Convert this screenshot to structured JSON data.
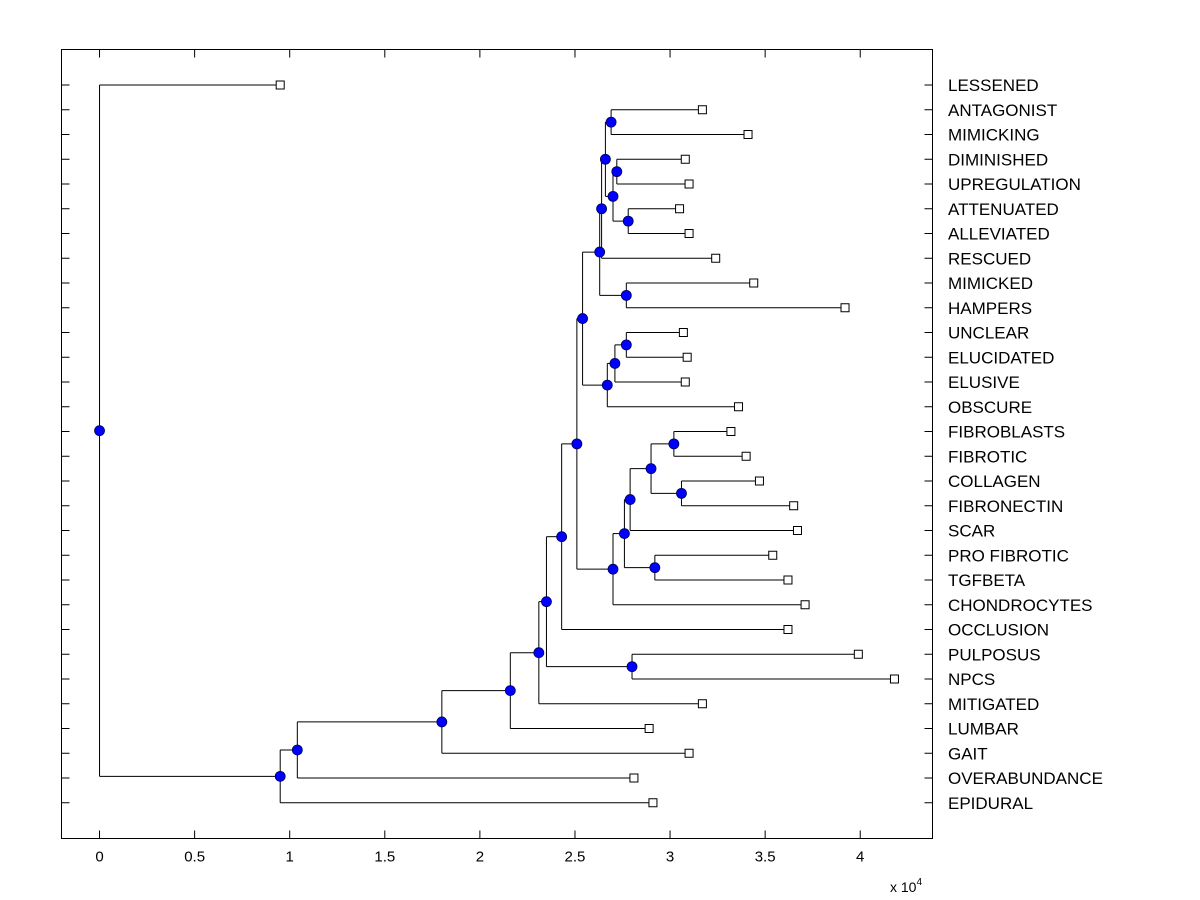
{
  "chart_data": {
    "type": "dendrogram",
    "orientation": "horizontal",
    "xlabel": "",
    "ylabel": "",
    "x_scale_label": "x 10",
    "x_scale_exponent": "4",
    "xlim": [
      -0.2,
      4.38
    ],
    "xticks": [
      0,
      0.5,
      1,
      1.5,
      2,
      2.5,
      3,
      3.5,
      4
    ],
    "xtick_labels": [
      "0",
      "0.5",
      "1",
      "1.5",
      "2",
      "2.5",
      "3",
      "3.5",
      "4"
    ],
    "leaves": [
      {
        "label": "LESSENED",
        "x": 0.95
      },
      {
        "label": "ANTAGONIST",
        "x": 3.17
      },
      {
        "label": "MIMICKING",
        "x": 3.41
      },
      {
        "label": "DIMINISHED",
        "x": 3.08
      },
      {
        "label": "UPREGULATION",
        "x": 3.1
      },
      {
        "label": "ATTENUATED",
        "x": 3.05
      },
      {
        "label": "ALLEVIATED",
        "x": 3.1
      },
      {
        "label": "RESCUED",
        "x": 3.24
      },
      {
        "label": "MIMICKED",
        "x": 3.44
      },
      {
        "label": "HAMPERS",
        "x": 3.92
      },
      {
        "label": "UNCLEAR",
        "x": 3.07
      },
      {
        "label": "ELUCIDATED",
        "x": 3.09
      },
      {
        "label": "ELUSIVE",
        "x": 3.08
      },
      {
        "label": "OBSCURE",
        "x": 3.36
      },
      {
        "label": "FIBROBLASTS",
        "x": 3.32
      },
      {
        "label": "FIBROTIC",
        "x": 3.4
      },
      {
        "label": "COLLAGEN",
        "x": 3.47
      },
      {
        "label": "FIBRONECTIN",
        "x": 3.65
      },
      {
        "label": "SCAR",
        "x": 3.67
      },
      {
        "label": "PRO FIBROTIC",
        "x": 3.54
      },
      {
        "label": "TGFBETA",
        "x": 3.62
      },
      {
        "label": "CHONDROCYTES",
        "x": 3.71
      },
      {
        "label": "OCCLUSION",
        "x": 3.62
      },
      {
        "label": "PULPOSUS",
        "x": 3.99
      },
      {
        "label": "NPCS",
        "x": 4.18
      },
      {
        "label": "MITIGATED",
        "x": 3.17
      },
      {
        "label": "LUMBAR",
        "x": 2.89
      },
      {
        "label": "GAIT",
        "x": 3.1
      },
      {
        "label": "OVERABUNDANCE",
        "x": 2.81
      },
      {
        "label": "EPIDURAL",
        "x": 2.91
      }
    ],
    "merges": [
      {
        "id": "n1",
        "x": 2.69,
        "children": [
          "L:ANTAGONIST",
          "L:MIMICKING"
        ]
      },
      {
        "id": "n2",
        "x": 2.72,
        "children": [
          "L:DIMINISHED",
          "L:UPREGULATION"
        ]
      },
      {
        "id": "n3",
        "x": 2.78,
        "children": [
          "L:ATTENUATED",
          "L:ALLEVIATED"
        ]
      },
      {
        "id": "n4",
        "x": 2.7,
        "children": [
          "n2",
          "n3"
        ]
      },
      {
        "id": "n5",
        "x": 2.66,
        "children": [
          "n1",
          "n4"
        ]
      },
      {
        "id": "n6",
        "x": 2.64,
        "children": [
          "n5",
          "L:RESCUED"
        ]
      },
      {
        "id": "n7",
        "x": 2.77,
        "children": [
          "L:MIMICKED",
          "L:HAMPERS"
        ]
      },
      {
        "id": "n8",
        "x": 2.63,
        "children": [
          "n6",
          "n7"
        ]
      },
      {
        "id": "n9",
        "x": 2.77,
        "children": [
          "L:UNCLEAR",
          "L:ELUCIDATED"
        ]
      },
      {
        "id": "n10",
        "x": 2.71,
        "children": [
          "n9",
          "L:ELUSIVE"
        ]
      },
      {
        "id": "n11",
        "x": 2.67,
        "children": [
          "n10",
          "L:OBSCURE"
        ]
      },
      {
        "id": "n12",
        "x": 2.54,
        "children": [
          "n8",
          "n11"
        ]
      },
      {
        "id": "n13",
        "x": 3.02,
        "children": [
          "L:FIBROBLASTS",
          "L:FIBROTIC"
        ]
      },
      {
        "id": "n14",
        "x": 3.06,
        "children": [
          "L:COLLAGEN",
          "L:FIBRONECTIN"
        ]
      },
      {
        "id": "n15",
        "x": 2.9,
        "children": [
          "n13",
          "n14"
        ]
      },
      {
        "id": "n16",
        "x": 2.79,
        "children": [
          "n15",
          "L:SCAR"
        ]
      },
      {
        "id": "n17",
        "x": 2.92,
        "children": [
          "L:PRO FIBROTIC",
          "L:TGFBETA"
        ]
      },
      {
        "id": "n18",
        "x": 2.76,
        "children": [
          "n16",
          "n17"
        ]
      },
      {
        "id": "n19",
        "x": 2.7,
        "children": [
          "n18",
          "L:CHONDROCYTES"
        ]
      },
      {
        "id": "n20",
        "x": 2.51,
        "children": [
          "n12",
          "n19"
        ]
      },
      {
        "id": "n21",
        "x": 2.43,
        "children": [
          "n20",
          "L:OCCLUSION"
        ]
      },
      {
        "id": "n22",
        "x": 2.8,
        "children": [
          "L:PULPOSUS",
          "L:NPCS"
        ]
      },
      {
        "id": "n23",
        "x": 2.35,
        "children": [
          "n21",
          "n22"
        ]
      },
      {
        "id": "n24",
        "x": 2.31,
        "children": [
          "n23",
          "L:MITIGATED"
        ]
      },
      {
        "id": "n25",
        "x": 2.16,
        "children": [
          "n24",
          "L:LUMBAR"
        ]
      },
      {
        "id": "n26",
        "x": 1.8,
        "children": [
          "n25",
          "L:GAIT"
        ]
      },
      {
        "id": "n27",
        "x": 1.04,
        "children": [
          "n26",
          "L:OVERABUNDANCE"
        ]
      },
      {
        "id": "n28",
        "x": 0.95,
        "children": [
          "n27",
          "L:EPIDURAL"
        ]
      },
      {
        "id": "root",
        "x": 0.0,
        "children": [
          "L:LESSENED",
          "n28"
        ]
      }
    ]
  },
  "colors": {
    "node_fill": "#0000ff",
    "node_stroke": "#000055",
    "line": "#000000",
    "leaf_marker_fill": "#ffffff",
    "background": "#ffffff"
  }
}
